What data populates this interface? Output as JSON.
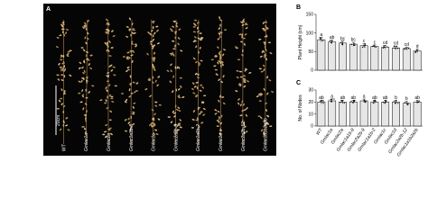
{
  "panel_a": {
    "label": "A",
    "scale_label": "20cm",
    "genotypes": [
      "WT",
      "Gmlac1a",
      "Gmlac2a",
      "Gmlac1a1b-8",
      "Gmlac1c",
      "Gmlac2a2b-9",
      "Gmlac1a1b-2",
      "Gmlac1d",
      "Gmlac2a2b-12",
      "Gmlac1a1b2a2b"
    ]
  },
  "chart_data": [
    {
      "type": "bar",
      "panel": "B",
      "y_label": "Plant Height (cm)",
      "values": [
        82,
        76,
        73,
        70,
        66,
        64,
        62,
        60,
        58,
        52
      ],
      "errors": [
        6,
        5,
        5,
        5,
        5,
        4,
        5,
        5,
        4,
        5
      ],
      "value_labels": [
        "a",
        "ab",
        "bc",
        "bc",
        "c",
        "c",
        "cd",
        "cd",
        "cd",
        "d"
      ],
      "ylim": [
        0,
        150
      ],
      "yticks": [
        0,
        50,
        100,
        150
      ],
      "color": "#e6e6e6"
    },
    {
      "type": "bar",
      "panel": "C",
      "y_label": "No. of Nodes",
      "categories": [
        "WT",
        "Gmlac1a",
        "Gmlac2a",
        "Gmlac1a1b-8",
        "Gmlac2a2b-9",
        "Gmlac1a1b-2",
        "Gmlac1c",
        "Gmlac1d",
        "Gmlac2a2b-12",
        "Gmlac1a1b2a2b"
      ],
      "values": [
        20,
        21,
        20,
        20,
        21,
        20,
        20,
        20,
        19,
        20
      ],
      "errors": [
        1.5,
        1.5,
        1.5,
        1.5,
        1.5,
        1.5,
        1.5,
        1.5,
        1.5,
        1.5
      ],
      "value_labels": [
        "ab",
        "a",
        "ab",
        "ab",
        "a",
        "ab",
        "ab",
        "b",
        "b",
        "ab"
      ],
      "ylim": [
        0,
        30
      ],
      "yticks": [
        0,
        10,
        20,
        30
      ],
      "color": "#e6e6e6"
    }
  ]
}
